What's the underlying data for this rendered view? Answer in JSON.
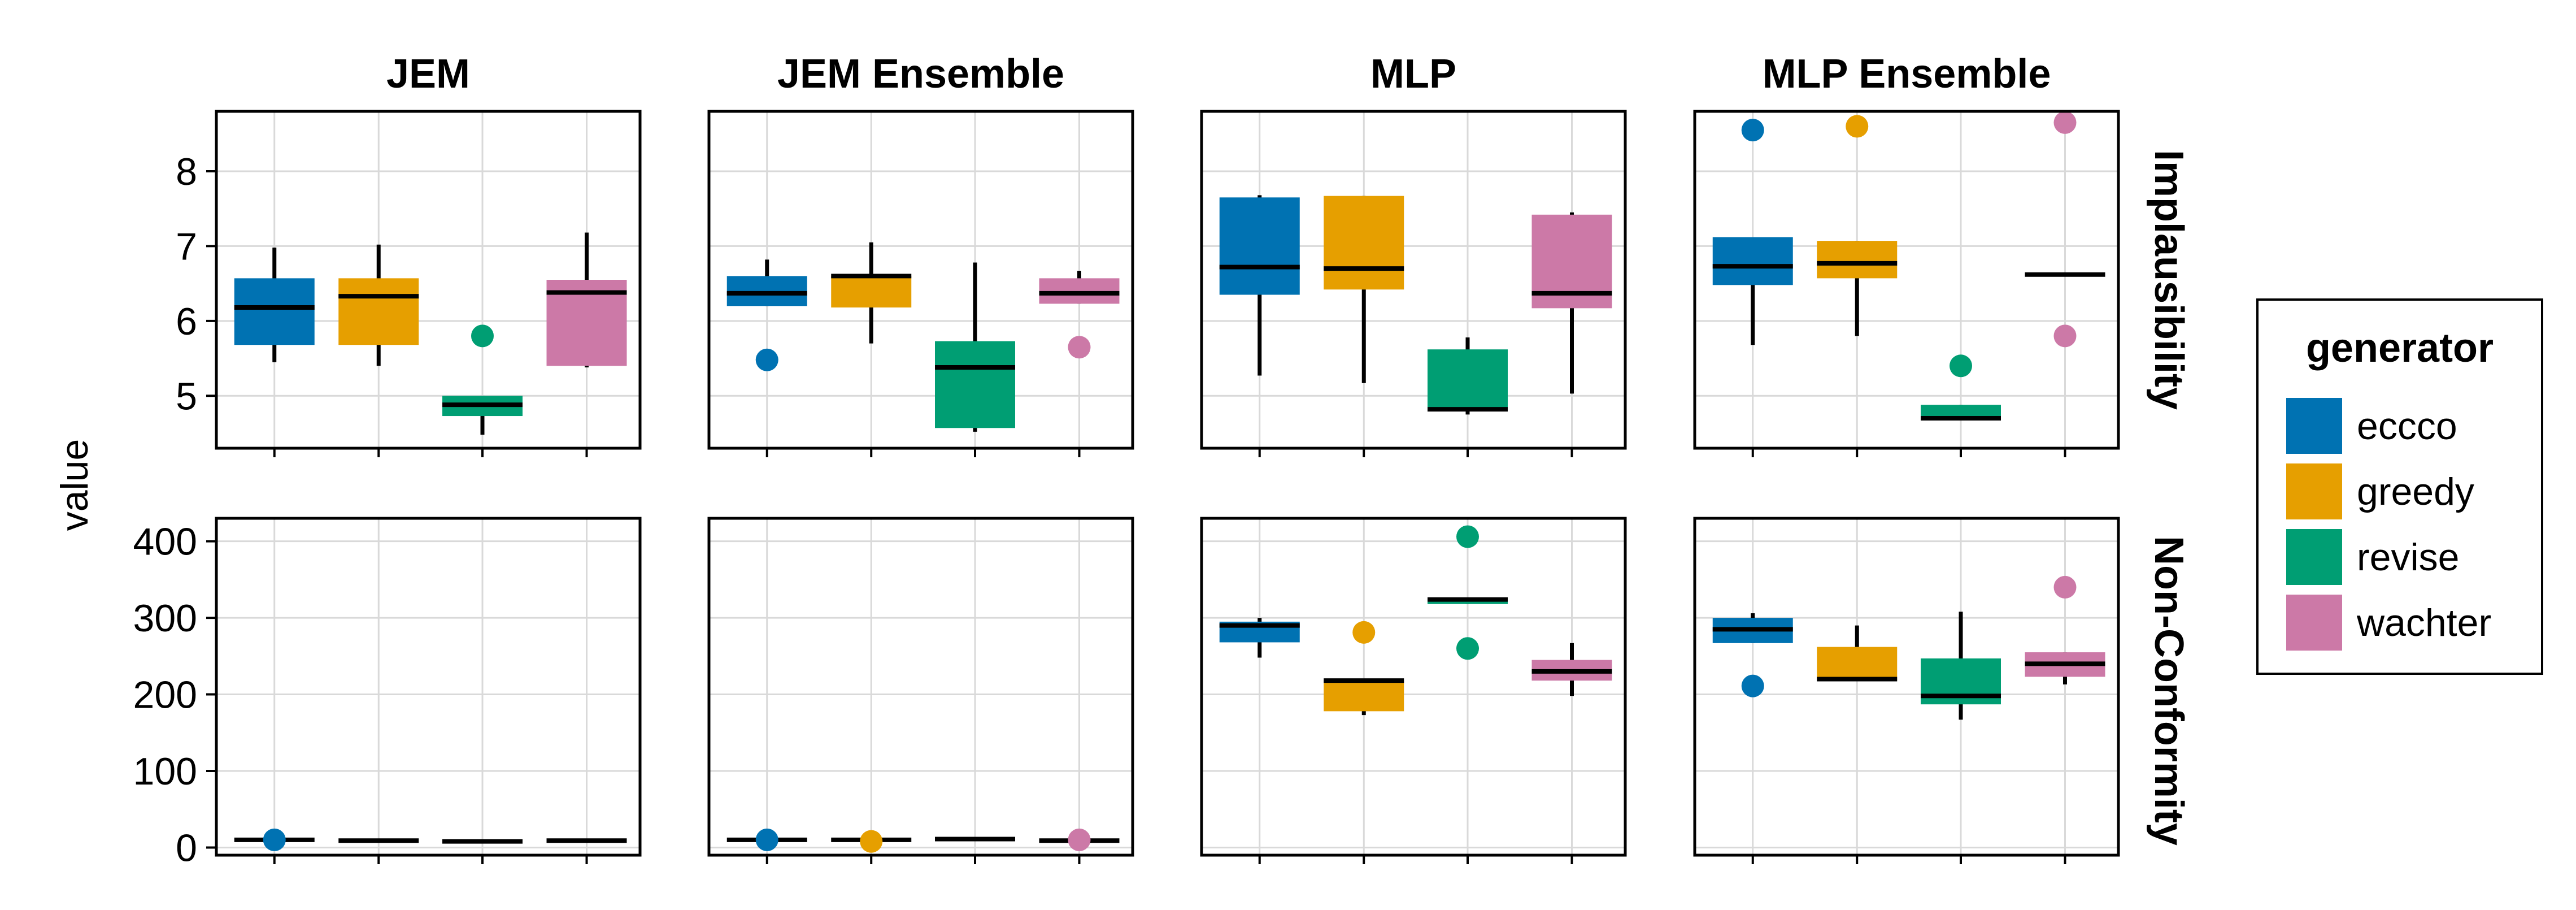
{
  "chart_data": {
    "type": "boxplot",
    "ylabel": "value",
    "columns": [
      "JEM",
      "JEM Ensemble",
      "MLP",
      "MLP Ensemble"
    ],
    "rows": [
      {
        "name": "Implausibility",
        "ylim": [
          4.3,
          8.8
        ],
        "ticks": [
          "5",
          "6",
          "7",
          "8"
        ],
        "tick_values": [
          5,
          6,
          7,
          8
        ]
      },
      {
        "name": "Non-Conformity",
        "ylim": [
          -10,
          430
        ],
        "ticks": [
          "0",
          "100",
          "200",
          "300",
          "400"
        ],
        "tick_values": [
          0,
          100,
          200,
          300,
          400
        ]
      }
    ],
    "legend": {
      "title": "generator",
      "placement": "right",
      "entries": [
        {
          "name": "eccco",
          "color": "#0072B2"
        },
        {
          "name": "greedy",
          "color": "#E69F00"
        },
        {
          "name": "revise",
          "color": "#009E73"
        },
        {
          "name": "wachter",
          "color": "#CC79A7"
        }
      ]
    },
    "grid": true,
    "panels": [
      {
        "row": 0,
        "col": 0,
        "boxes": [
          {
            "q1": 5.68,
            "median": 6.18,
            "q3": 6.57,
            "lo": 5.45,
            "hi": 6.98,
            "outliers": []
          },
          {
            "q1": 5.68,
            "median": 6.33,
            "q3": 6.57,
            "lo": 5.4,
            "hi": 7.02,
            "outliers": []
          },
          {
            "q1": 4.73,
            "median": 4.88,
            "q3": 5.0,
            "lo": 4.48,
            "hi": 5.0,
            "outliers": [
              5.8
            ]
          },
          {
            "q1": 5.4,
            "median": 6.38,
            "q3": 6.55,
            "lo": 5.38,
            "hi": 7.18,
            "outliers": []
          }
        ]
      },
      {
        "row": 0,
        "col": 1,
        "boxes": [
          {
            "q1": 6.2,
            "median": 6.37,
            "q3": 6.6,
            "lo": 6.2,
            "hi": 6.82,
            "outliers": [
              5.48
            ]
          },
          {
            "q1": 6.18,
            "median": 6.6,
            "q3": 6.6,
            "lo": 5.7,
            "hi": 7.05,
            "outliers": []
          },
          {
            "q1": 4.57,
            "median": 5.38,
            "q3": 5.73,
            "lo": 4.52,
            "hi": 6.78,
            "outliers": []
          },
          {
            "q1": 6.23,
            "median": 6.37,
            "q3": 6.57,
            "lo": 6.23,
            "hi": 6.67,
            "outliers": [
              5.65
            ]
          }
        ]
      },
      {
        "row": 0,
        "col": 2,
        "boxes": [
          {
            "q1": 6.35,
            "median": 6.72,
            "q3": 7.65,
            "lo": 5.27,
            "hi": 7.68,
            "outliers": []
          },
          {
            "q1": 6.42,
            "median": 6.7,
            "q3": 7.67,
            "lo": 5.17,
            "hi": 7.67,
            "outliers": []
          },
          {
            "q1": 4.82,
            "median": 4.82,
            "q3": 5.62,
            "lo": 4.75,
            "hi": 5.78,
            "outliers": []
          },
          {
            "q1": 6.17,
            "median": 6.37,
            "q3": 7.42,
            "lo": 5.03,
            "hi": 7.45,
            "outliers": []
          }
        ]
      },
      {
        "row": 0,
        "col": 3,
        "boxes": [
          {
            "q1": 6.48,
            "median": 6.73,
            "q3": 7.12,
            "lo": 5.68,
            "hi": 7.12,
            "outliers": [
              8.55
            ]
          },
          {
            "q1": 6.57,
            "median": 6.77,
            "q3": 7.07,
            "lo": 5.8,
            "hi": 7.07,
            "outliers": [
              8.6
            ]
          },
          {
            "q1": 4.7,
            "median": 4.7,
            "q3": 4.88,
            "lo": 4.7,
            "hi": 4.88,
            "outliers": [
              5.4
            ]
          },
          {
            "q1": 6.62,
            "median": 6.62,
            "q3": 6.62,
            "lo": 6.62,
            "hi": 6.62,
            "outliers": [
              8.65,
              5.8
            ]
          }
        ]
      },
      {
        "row": 1,
        "col": 0,
        "boxes": [
          {
            "q1": 10,
            "median": 10,
            "q3": 10,
            "lo": 10,
            "hi": 10,
            "outliers": [
              10
            ]
          },
          {
            "q1": 9,
            "median": 9,
            "q3": 9,
            "lo": 9,
            "hi": 9,
            "outliers": []
          },
          {
            "q1": 8,
            "median": 8,
            "q3": 8,
            "lo": 8,
            "hi": 8,
            "outliers": []
          },
          {
            "q1": 9,
            "median": 9,
            "q3": 9,
            "lo": 9,
            "hi": 9,
            "outliers": []
          }
        ]
      },
      {
        "row": 1,
        "col": 1,
        "boxes": [
          {
            "q1": 10,
            "median": 10,
            "q3": 10,
            "lo": 10,
            "hi": 10,
            "outliers": [
              10
            ]
          },
          {
            "q1": 10,
            "median": 10,
            "q3": 10,
            "lo": 10,
            "hi": 10,
            "outliers": [
              8
            ]
          },
          {
            "q1": 11,
            "median": 11,
            "q3": 11,
            "lo": 11,
            "hi": 11,
            "outliers": []
          },
          {
            "q1": 9,
            "median": 9,
            "q3": 9,
            "lo": 9,
            "hi": 9,
            "outliers": [
              10
            ]
          }
        ]
      },
      {
        "row": 1,
        "col": 2,
        "boxes": [
          {
            "q1": 268,
            "median": 290,
            "q3": 295,
            "lo": 248,
            "hi": 300,
            "outliers": []
          },
          {
            "q1": 178,
            "median": 218,
            "q3": 218,
            "lo": 173,
            "hi": 218,
            "outliers": [
              281
            ]
          },
          {
            "q1": 318,
            "median": 324,
            "q3": 324,
            "lo": 318,
            "hi": 324,
            "outliers": [
              406,
              260
            ]
          },
          {
            "q1": 218,
            "median": 230,
            "q3": 245,
            "lo": 198,
            "hi": 267,
            "outliers": []
          }
        ]
      },
      {
        "row": 1,
        "col": 3,
        "boxes": [
          {
            "q1": 267,
            "median": 285,
            "q3": 300,
            "lo": 267,
            "hi": 306,
            "outliers": [
              211
            ]
          },
          {
            "q1": 218,
            "median": 220,
            "q3": 262,
            "lo": 218,
            "hi": 290,
            "outliers": []
          },
          {
            "q1": 187,
            "median": 198,
            "q3": 247,
            "lo": 167,
            "hi": 308,
            "outliers": []
          },
          {
            "q1": 223,
            "median": 240,
            "q3": 255,
            "lo": 213,
            "hi": 255,
            "outliers": [
              340
            ]
          }
        ]
      }
    ]
  }
}
